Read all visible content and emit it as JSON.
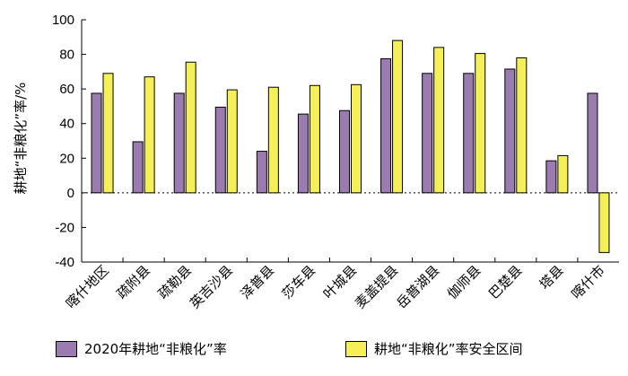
{
  "chart_data": {
    "type": "bar",
    "ylabel": "耕地“非粮化”率/%",
    "ylim": [
      -40,
      100
    ],
    "yticks": [
      "100",
      "80",
      "60",
      "40",
      "20",
      "0",
      "-20",
      "-40"
    ],
    "categories": [
      "喀什地区",
      "疏附县",
      "疏勒县",
      "英吉沙县",
      "泽普县",
      "莎车县",
      "叶城县",
      "麦盖提县",
      "岳普湖县",
      "伽师县",
      "巴楚县",
      "塔县",
      "喀什市"
    ],
    "series": [
      {
        "name": "2020年耕地“非粮化”率",
        "color": "#9b7bb0",
        "values": [
          57.5,
          29.5,
          57.5,
          49.5,
          24,
          45.5,
          47.5,
          77.5,
          69,
          69,
          71.5,
          18.5,
          57.5
        ]
      },
      {
        "name": "耕地“非粮化”率安全区间",
        "color": "#f5f05a",
        "values": [
          69,
          67,
          75.5,
          59.5,
          61,
          62,
          62.5,
          88,
          84,
          80.5,
          78,
          21.5,
          -34.5
        ]
      }
    ],
    "grid": false,
    "zero_line": "dotted"
  }
}
